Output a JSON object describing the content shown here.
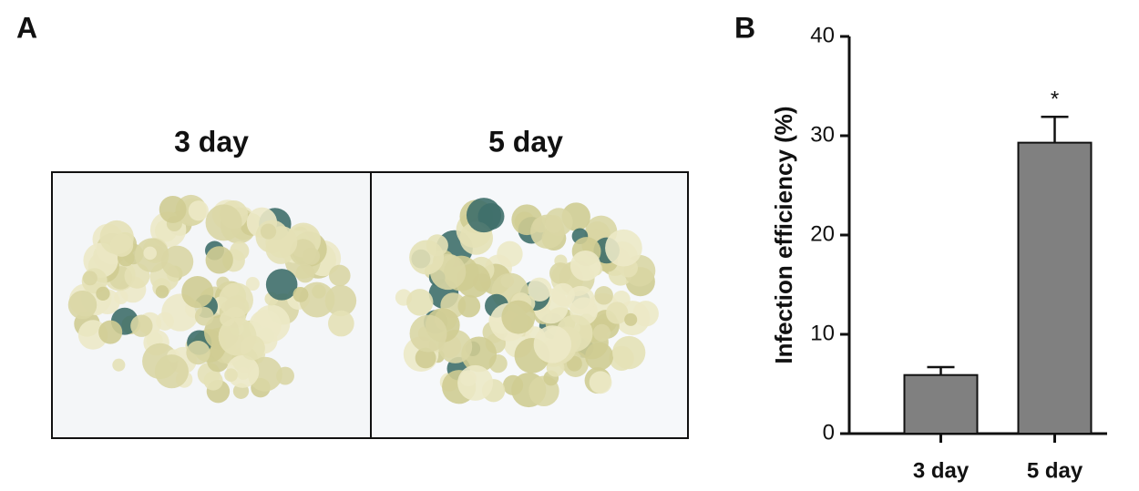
{
  "panels": {
    "a": {
      "label": "A",
      "images": [
        {
          "title": "3 day"
        },
        {
          "title": "5 day"
        }
      ]
    },
    "b": {
      "label": "B"
    }
  },
  "chart_data": {
    "type": "bar",
    "y_label": "Infection efficiency (%)",
    "categories": [
      "3 day",
      "5 day"
    ],
    "values": [
      5.9,
      29.3
    ],
    "errors": [
      0.8,
      2.6
    ],
    "color": "#808080",
    "ylim": [
      0,
      40
    ],
    "yticks": [
      0,
      10,
      20,
      30,
      40
    ],
    "annotations": [
      {
        "text": "*",
        "category": "5 day"
      }
    ]
  }
}
